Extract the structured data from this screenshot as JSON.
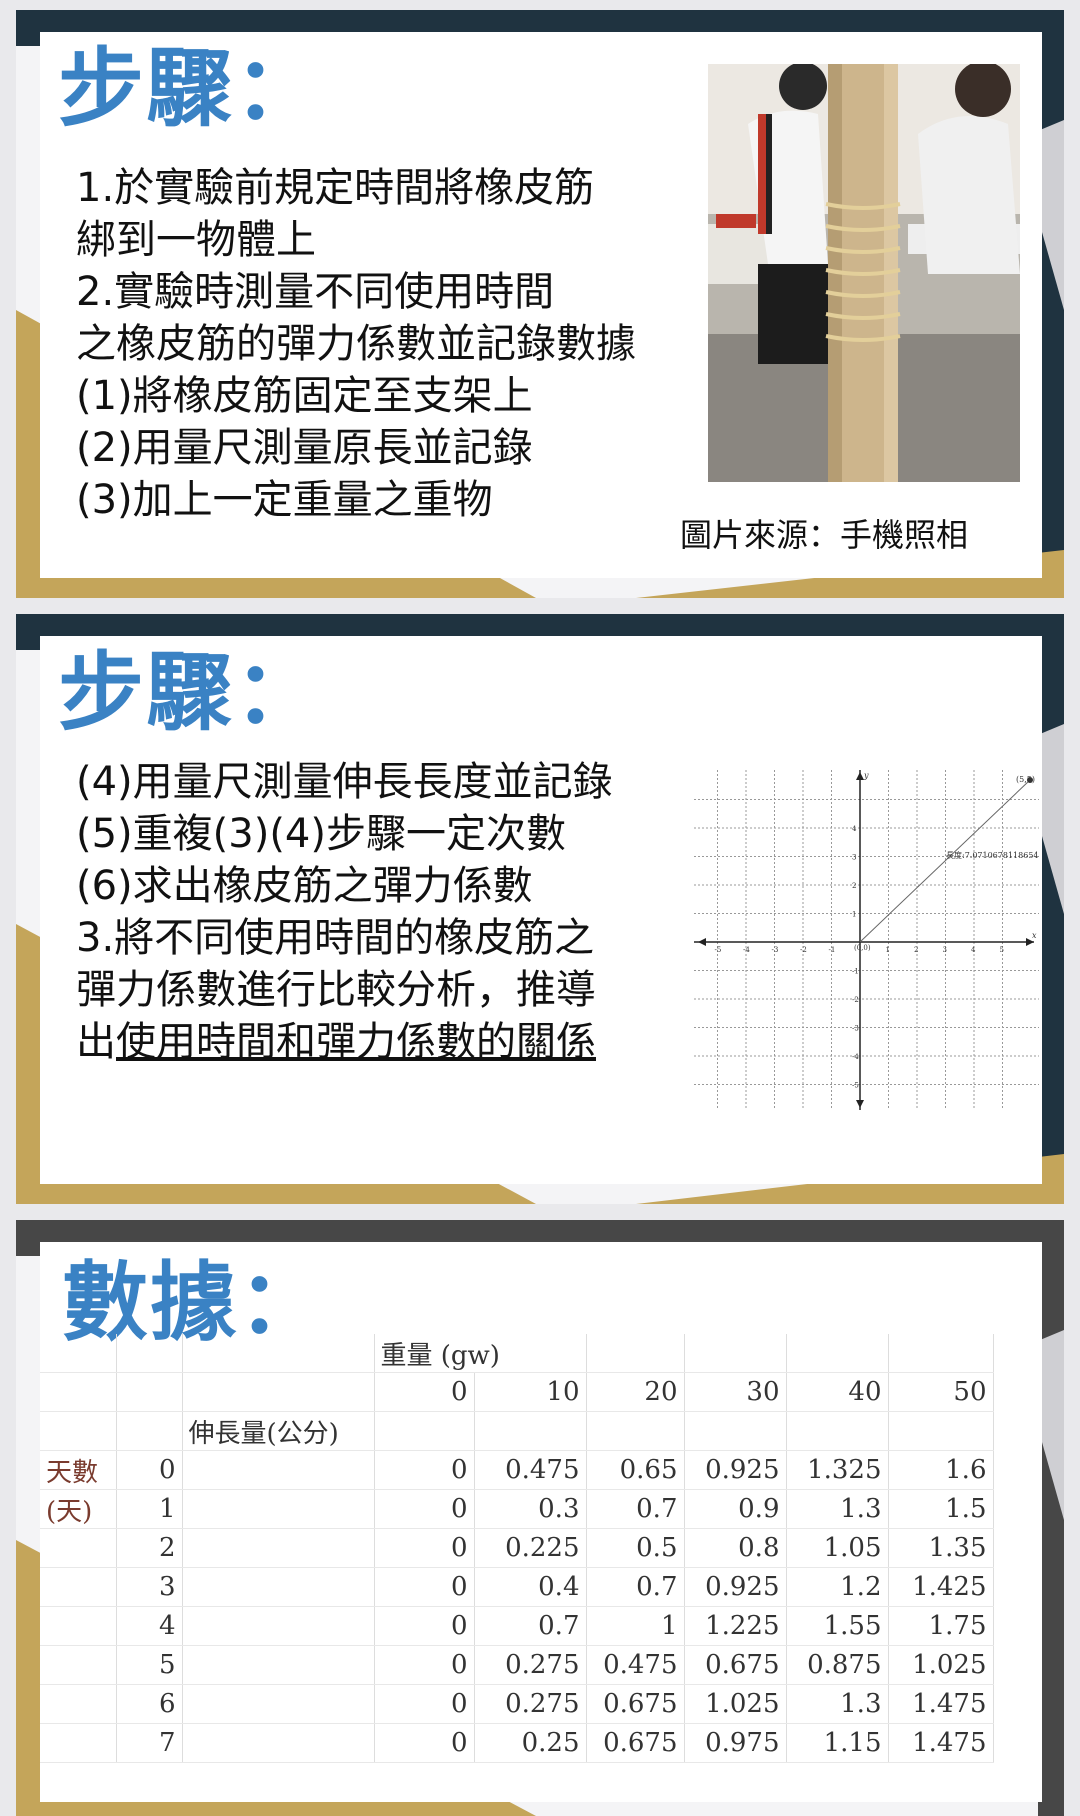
{
  "slide1": {
    "title": "步驟：",
    "lines": [
      "1.於實驗前規定時間將橡皮筋",
      "綁到一物體上",
      "2.實驗時測量不同使用時間",
      "之橡皮筋的彈力係數並記錄數據",
      "(1)將橡皮筋固定至支架上",
      "(2)用量尺測量原長並記錄",
      "(3)加上一定重量之重物"
    ],
    "photo_caption": "圖片來源：手機照相"
  },
  "slide2": {
    "title": "步驟：",
    "lines": [
      "(4)用量尺測量伸長長度並記錄",
      "(5)重複(3)(4)步驟一定次數",
      "(6)求出橡皮筋之彈力係數",
      "3.將不同使用時間的橡皮筋之",
      "彈力係數進行比較分析，推導"
    ],
    "last_prefix": "出",
    "last_underlined": "使用時間和彈力係數的關係",
    "graph": {
      "y_axis": "y",
      "x_axis": "x",
      "point_label": "(5,5)",
      "origin_label": "(0,0)",
      "length_label": "長度:7.0710678118654",
      "x_ticks": [
        "-5",
        "-4",
        "-3",
        "-2",
        "-1",
        "1",
        "2",
        "3",
        "4",
        "5"
      ],
      "y_ticks": [
        "4",
        "3",
        "2",
        "1",
        "-1",
        "-2",
        "-3",
        "-4",
        "-5"
      ]
    }
  },
  "slide3": {
    "title": "數據：",
    "weight_header": "重量  (gw)",
    "weights": [
      "0",
      "10",
      "20",
      "30",
      "40",
      "50"
    ],
    "extension_header": "伸長量(公分)",
    "days_label": "天數",
    "days_unit": "(天)",
    "rows": [
      {
        "day": "0",
        "values": [
          "0",
          "0.475",
          "0.65",
          "0.925",
          "1.325",
          "1.6"
        ]
      },
      {
        "day": "1",
        "values": [
          "0",
          "0.3",
          "0.7",
          "0.9",
          "1.3",
          "1.5"
        ]
      },
      {
        "day": "2",
        "values": [
          "0",
          "0.225",
          "0.5",
          "0.8",
          "1.05",
          "1.35"
        ]
      },
      {
        "day": "3",
        "values": [
          "0",
          "0.4",
          "0.7",
          "0.925",
          "1.2",
          "1.425"
        ]
      },
      {
        "day": "4",
        "values": [
          "0",
          "0.7",
          "1",
          "1.225",
          "1.55",
          "1.75"
        ]
      },
      {
        "day": "5",
        "values": [
          "0",
          "0.275",
          "0.475",
          "0.675",
          "0.875",
          "1.025"
        ]
      },
      {
        "day": "6",
        "values": [
          "0",
          "0.275",
          "0.675",
          "1.025",
          "1.3",
          "1.475"
        ]
      },
      {
        "day": "7",
        "values": [
          "0",
          "0.25",
          "0.675",
          "0.975",
          "1.15",
          "1.475"
        ]
      }
    ]
  },
  "colors": {
    "title_blue": "#3a82c4",
    "band_dark": "#1f3340",
    "band_gold": "#c4a55a",
    "band_grey": "#4a4a4a"
  }
}
